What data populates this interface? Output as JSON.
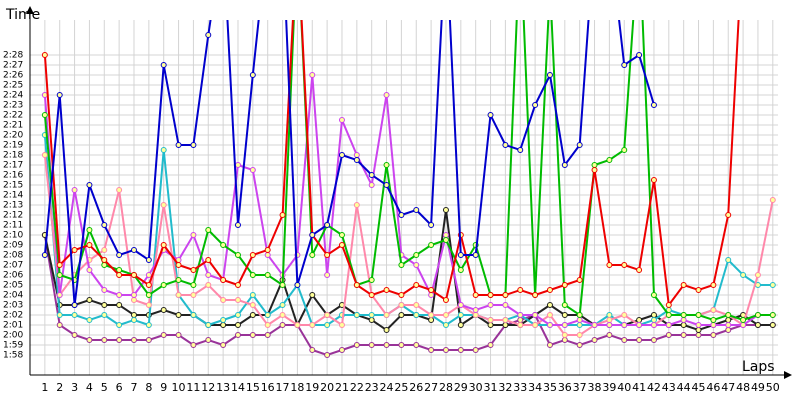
{
  "chart_data": {
    "type": "line",
    "y_label": "Time",
    "x_label": "Laps",
    "x": [
      1,
      2,
      3,
      4,
      5,
      6,
      7,
      8,
      9,
      10,
      11,
      12,
      13,
      14,
      15,
      16,
      17,
      18,
      19,
      20,
      21,
      22,
      23,
      24,
      25,
      26,
      27,
      28,
      29,
      30,
      31,
      32,
      33,
      34,
      35,
      36,
      37,
      38,
      39,
      40,
      41,
      42,
      43,
      44,
      45,
      46,
      47,
      48,
      49,
      50
    ],
    "xlim": [
      0,
      50.35
    ],
    "xticks": [
      1,
      2,
      3,
      4,
      5,
      6,
      7,
      8,
      9,
      10,
      11,
      12,
      13,
      14,
      15,
      16,
      17,
      18,
      19,
      20,
      21,
      22,
      23,
      24,
      25,
      26,
      27,
      28,
      29,
      30,
      31,
      32,
      33,
      34,
      35,
      36,
      37,
      38,
      39,
      40,
      41,
      42,
      43,
      44,
      45,
      46,
      47,
      48,
      49,
      50
    ],
    "ylim": [
      116,
      151.5
    ],
    "yticks": [
      {
        "value": 118,
        "label": "1:58"
      },
      {
        "value": 119,
        "label": "1:59"
      },
      {
        "value": 120,
        "label": "2:00"
      },
      {
        "value": 121,
        "label": "2:01"
      },
      {
        "value": 122,
        "label": "2:02"
      },
      {
        "value": 123,
        "label": "2:03"
      },
      {
        "value": 124,
        "label": "2:04"
      },
      {
        "value": 125,
        "label": "2:05"
      },
      {
        "value": 126,
        "label": "2:06"
      },
      {
        "value": 127,
        "label": "2:07"
      },
      {
        "value": 128,
        "label": "2:08"
      },
      {
        "value": 129,
        "label": "2:09"
      },
      {
        "value": 130,
        "label": "2:10"
      },
      {
        "value": 131,
        "label": "2:11"
      },
      {
        "value": 132,
        "label": "2:12"
      },
      {
        "value": 133,
        "label": "2:13"
      },
      {
        "value": 134,
        "label": "2:14"
      },
      {
        "value": 135,
        "label": "2:15"
      },
      {
        "value": 136,
        "label": "2:16"
      },
      {
        "value": 137,
        "label": "2:17"
      },
      {
        "value": 138,
        "label": "2:18"
      },
      {
        "value": 139,
        "label": "2:19"
      },
      {
        "value": 140,
        "label": "2:20"
      },
      {
        "value": 141,
        "label": "2:21"
      },
      {
        "value": 142,
        "label": "2:22"
      },
      {
        "value": 143,
        "label": "2:23"
      },
      {
        "value": 144,
        "label": "2:24"
      },
      {
        "value": 145,
        "label": "2:25"
      },
      {
        "value": 146,
        "label": "2:26"
      },
      {
        "value": 147,
        "label": "2:27"
      },
      {
        "value": 148,
        "label": "2:28"
      }
    ],
    "grid": true,
    "series": [
      {
        "color": "#993399",
        "values": [
          130,
          121,
          120,
          119.5,
          119.5,
          119.5,
          119.5,
          119.5,
          120,
          120,
          119,
          119.5,
          119,
          120,
          120,
          120,
          121,
          121,
          118.5,
          118,
          118.5,
          119,
          119,
          119,
          119,
          119,
          118.5,
          118.5,
          118.5,
          118.5,
          119,
          121,
          121.5,
          122,
          119,
          119.5,
          119,
          119.5,
          120,
          119.5,
          119.5,
          119.5,
          120,
          120,
          120,
          120,
          120.5,
          121,
          121,
          121
        ]
      },
      {
        "color": "#222222",
        "values": [
          130,
          123,
          123,
          123.5,
          123,
          123,
          122,
          122,
          122.5,
          122,
          122,
          121,
          121,
          121,
          122,
          122,
          125.5,
          121,
          124,
          122,
          123,
          122,
          121.5,
          120.5,
          122,
          122,
          121.5,
          132.5,
          121,
          122,
          121,
          121,
          121,
          122,
          123,
          122,
          122,
          121,
          121,
          121,
          121.5,
          122,
          121,
          121,
          120.5,
          121,
          121.5,
          122,
          121,
          121
        ]
      },
      {
        "color": "#22bbcc",
        "values": [
          140,
          122,
          122,
          121.5,
          122,
          121,
          121.5,
          121,
          138.5,
          124,
          122,
          121,
          121.5,
          122,
          124,
          122,
          123,
          125,
          121,
          121,
          122,
          122,
          122,
          122,
          123,
          122,
          122,
          121,
          122,
          122,
          121.5,
          121.5,
          122,
          121,
          121,
          121,
          121,
          121,
          122,
          121,
          121,
          121.5,
          122.5,
          122,
          122,
          122.5,
          127.5,
          126,
          125,
          125
        ]
      },
      {
        "color": "#ff88aa",
        "values": [
          138,
          124,
          126,
          127.5,
          128.5,
          134.5,
          123.5,
          123,
          133,
          124,
          124,
          125,
          123.5,
          123.5,
          123,
          121,
          122,
          121,
          121,
          122,
          121,
          133,
          124,
          122,
          123,
          123,
          122,
          122,
          123,
          122,
          121.5,
          121.5,
          121,
          121,
          122,
          120,
          120,
          121,
          121.5,
          122,
          121,
          121,
          122,
          122,
          122,
          122.5,
          122,
          121,
          126,
          133.5
        ]
      },
      {
        "color": "#cc44ee",
        "values": [
          144,
          124,
          134.5,
          126.5,
          124.5,
          124,
          124,
          126,
          128.5,
          127.5,
          130,
          126,
          125.5,
          137,
          136.5,
          128,
          126,
          128,
          146,
          126,
          141.5,
          138,
          135,
          144,
          128,
          127,
          124,
          130,
          123,
          122.5,
          123,
          123,
          122,
          122,
          121,
          121,
          121.5,
          121,
          121,
          121,
          121,
          121,
          121,
          121.5,
          121,
          121,
          121,
          121,
          122,
          122
        ]
      },
      {
        "color": "#00bb00",
        "values": [
          142,
          126,
          125.5,
          130.5,
          127,
          126.5,
          126,
          124,
          125,
          125.5,
          125,
          130.5,
          129,
          128,
          126,
          126,
          125,
          160,
          128,
          131,
          130,
          125,
          125.5,
          137,
          127,
          128,
          129,
          129.5,
          126.5,
          129,
          124,
          124,
          160,
          124,
          155,
          123,
          122,
          137,
          137.5,
          138.5,
          160,
          124,
          122,
          122,
          122,
          121.5,
          122,
          121.5,
          122,
          122
        ]
      },
      {
        "color": "#ee0000",
        "values": [
          148,
          127,
          128.5,
          129,
          127.5,
          126,
          126,
          125,
          129,
          127,
          126.5,
          127.5,
          125.5,
          125,
          128,
          128.5,
          132,
          160,
          130,
          128,
          129,
          125,
          124,
          124.5,
          124,
          125,
          124.5,
          123.5,
          130,
          124,
          124,
          124,
          124.5,
          124,
          124.5,
          125,
          125.5,
          136.5,
          127,
          127,
          126.5,
          135.5,
          123,
          125,
          124.5,
          125,
          132,
          160,
          null,
          null
        ]
      },
      {
        "color": "#0000cc",
        "values": [
          128,
          144,
          123,
          135,
          131,
          128,
          128.5,
          127.5,
          147,
          139,
          139,
          150,
          160,
          131,
          146,
          160,
          160,
          125,
          130,
          131,
          138,
          137.5,
          136,
          135,
          132,
          132.5,
          131,
          160,
          128,
          128,
          142,
          139,
          138.5,
          143,
          146,
          137,
          139,
          160,
          160,
          147,
          148,
          143,
          null,
          null,
          null,
          null,
          null,
          null,
          null,
          null
        ]
      }
    ]
  }
}
